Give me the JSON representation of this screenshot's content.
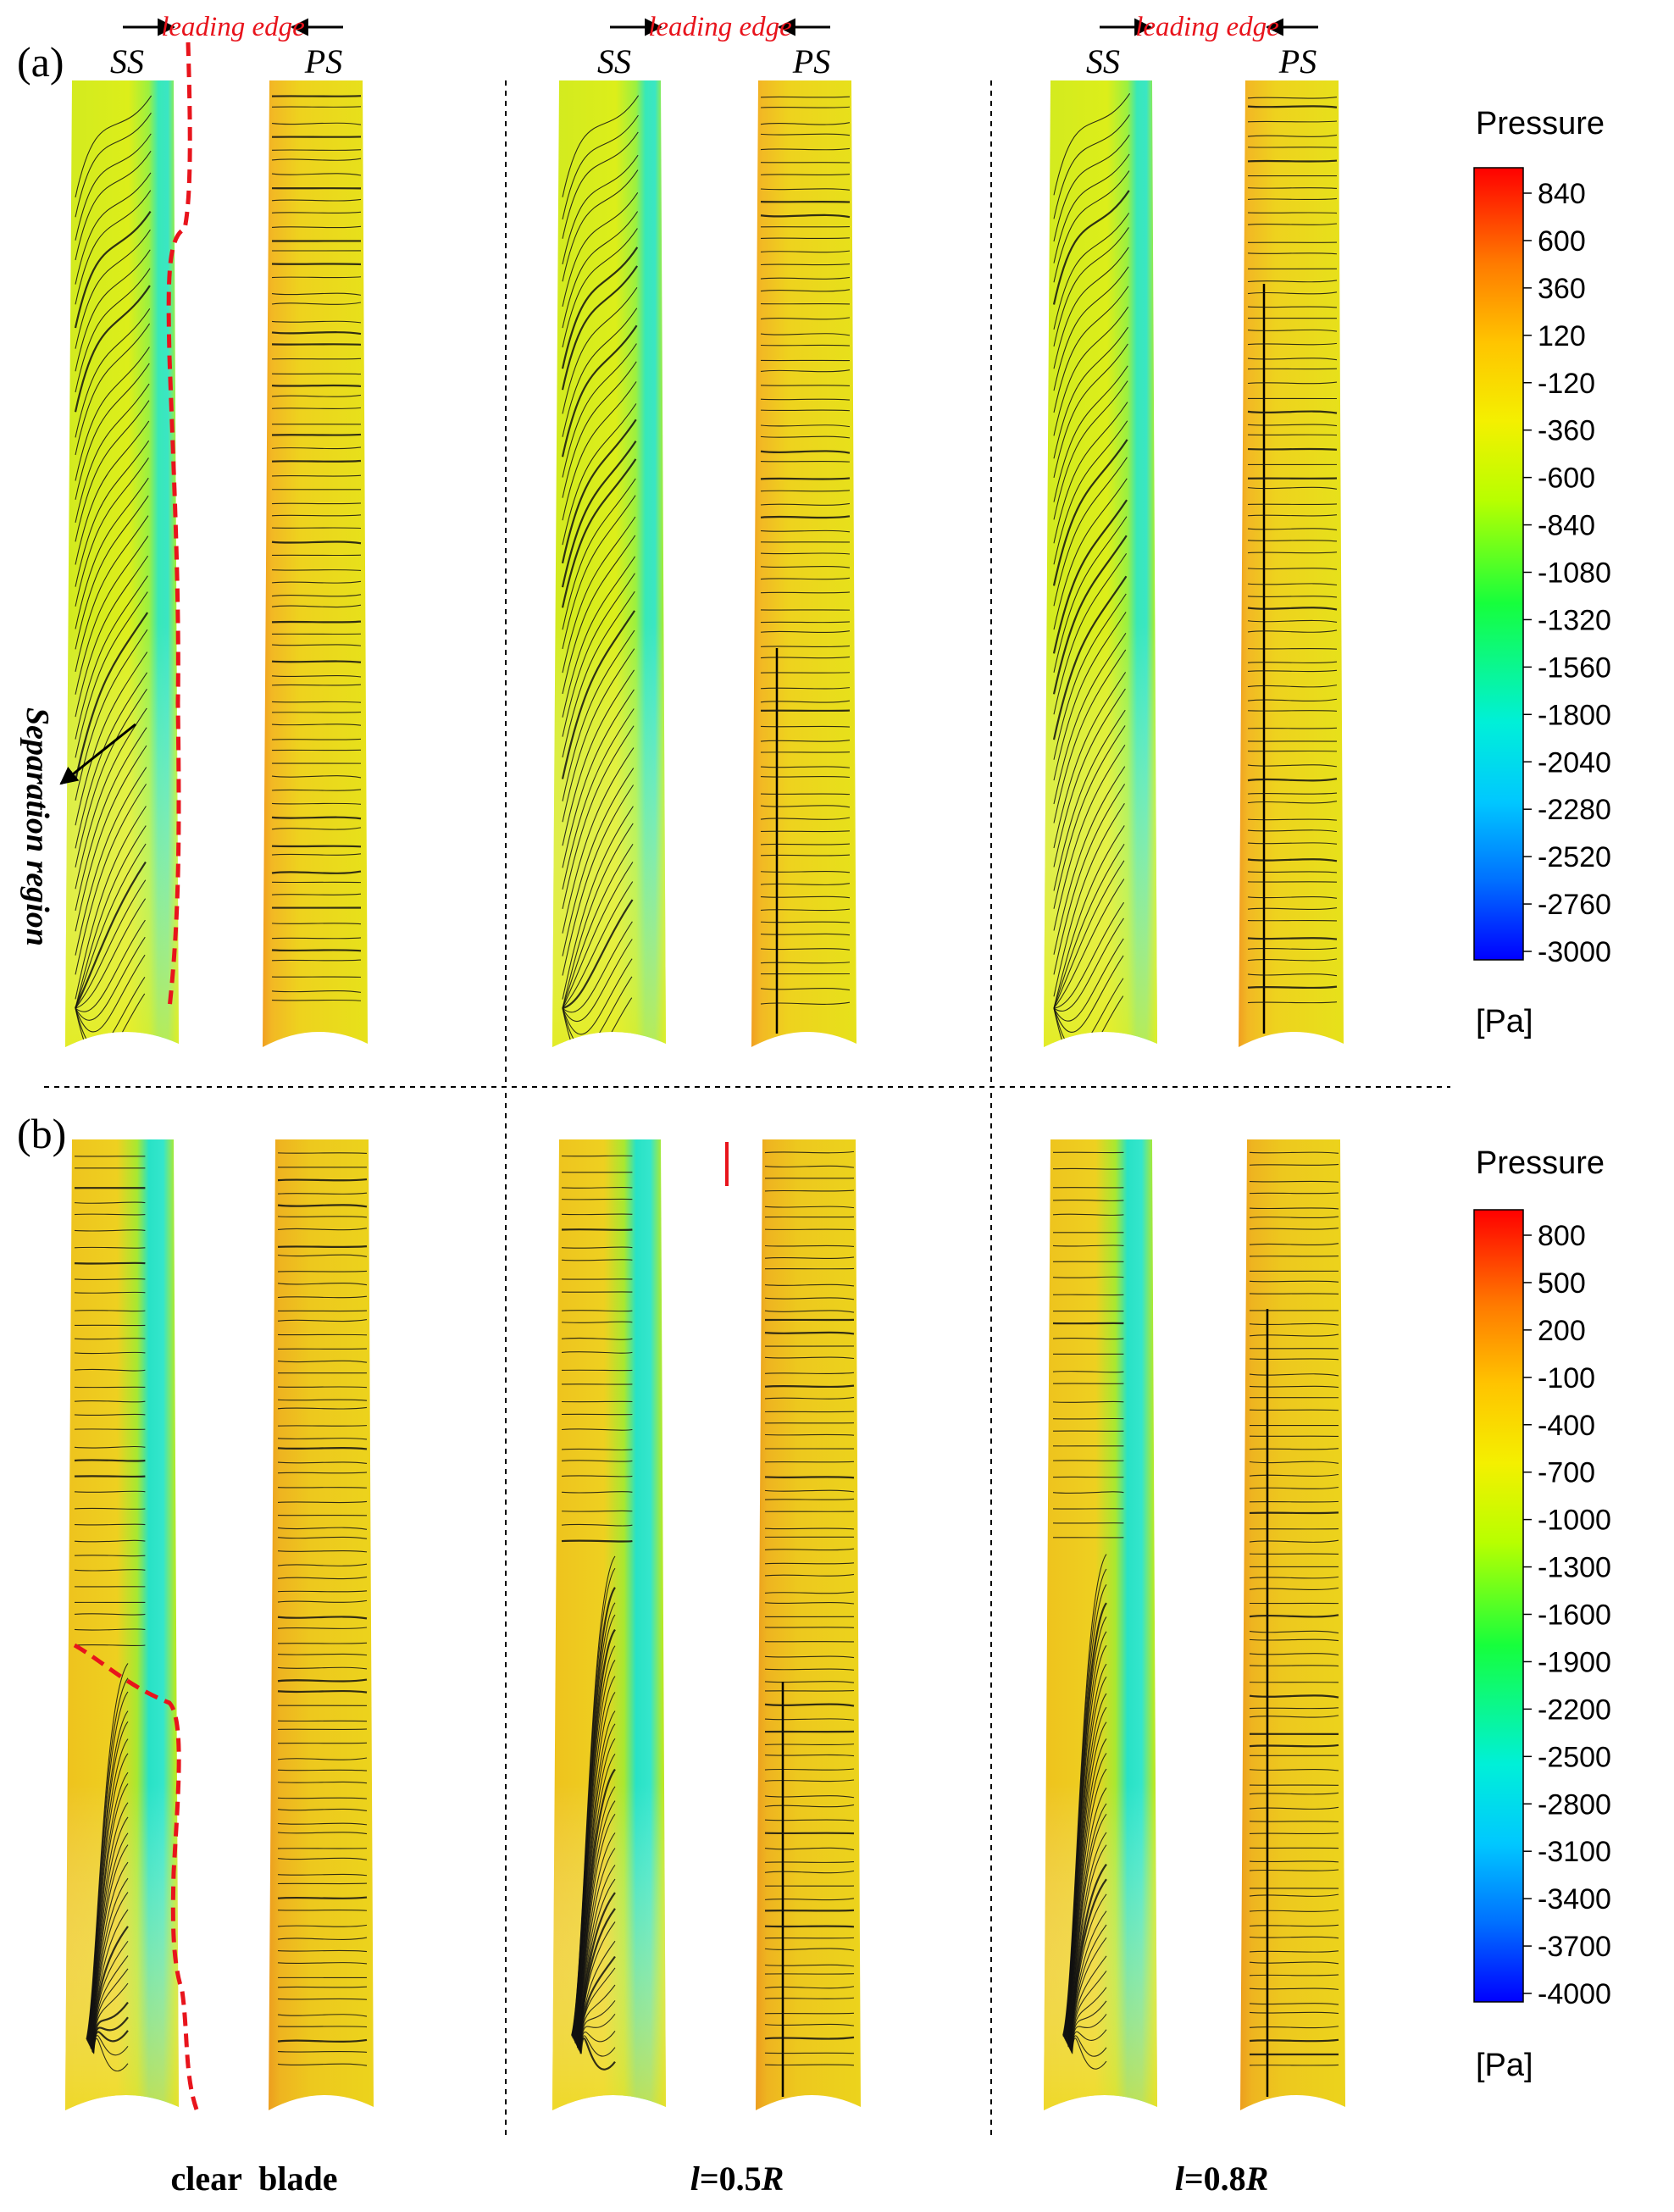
{
  "panel_a": {
    "label": "(a)",
    "leading_edge": "leading edge",
    "ss": "SS",
    "ps": "PS",
    "separation": "Separation region",
    "legend": {
      "title": "Pressure",
      "unit": "[Pa]",
      "ticks": [
        "840",
        "600",
        "360",
        "120",
        "-120",
        "-360",
        "-600",
        "-840",
        "-1080",
        "-1320",
        "-1560",
        "-1800",
        "-2040",
        "-2280",
        "-2520",
        "-2760",
        "-3000"
      ]
    }
  },
  "panel_b": {
    "label": "(b)",
    "legend": {
      "title": "Pressure",
      "unit": "[Pa]",
      "ticks": [
        "800",
        "500",
        "200",
        "-100",
        "-400",
        "-700",
        "-1000",
        "-1300",
        "-1600",
        "-1900",
        "-2200",
        "-2500",
        "-2800",
        "-3100",
        "-3400",
        "-3700",
        "-4000"
      ]
    }
  },
  "columns": {
    "clear": "clear  blade",
    "half_prefix": "l",
    "half_value": "=0.5",
    "half_suffix": "R",
    "eight_prefix": "l",
    "eight_value": "=0.8",
    "eight_suffix": "R"
  },
  "colors": {
    "scale": [
      "#0000ff",
      "#00e5ff",
      "#00ff60",
      "#d8ff00",
      "#ffd000",
      "#ff0000"
    ],
    "annotation_red": "#e8141c",
    "blade_base": "#e6ec1a"
  }
}
